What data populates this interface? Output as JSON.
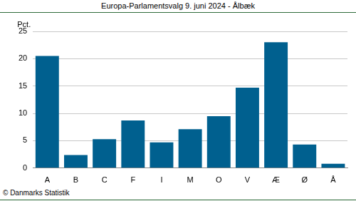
{
  "chart_data": {
    "type": "bar",
    "title": "Europa-Parlamentsvalg 9. juni 2024 - Ålbæk",
    "ylabel": "Pct.",
    "footer": "© Danmarks Statistik",
    "categories": [
      "A",
      "B",
      "C",
      "F",
      "I",
      "M",
      "O",
      "V",
      "Æ",
      "Ø",
      "Å"
    ],
    "values": [
      20.5,
      2.4,
      5.3,
      8.7,
      4.7,
      7.1,
      9.5,
      14.7,
      23.0,
      4.3,
      0.8
    ],
    "color": "#00608f",
    "ylim": [
      0,
      25
    ],
    "yticks": [
      0,
      5,
      10,
      15,
      20,
      25
    ],
    "grid": true
  }
}
